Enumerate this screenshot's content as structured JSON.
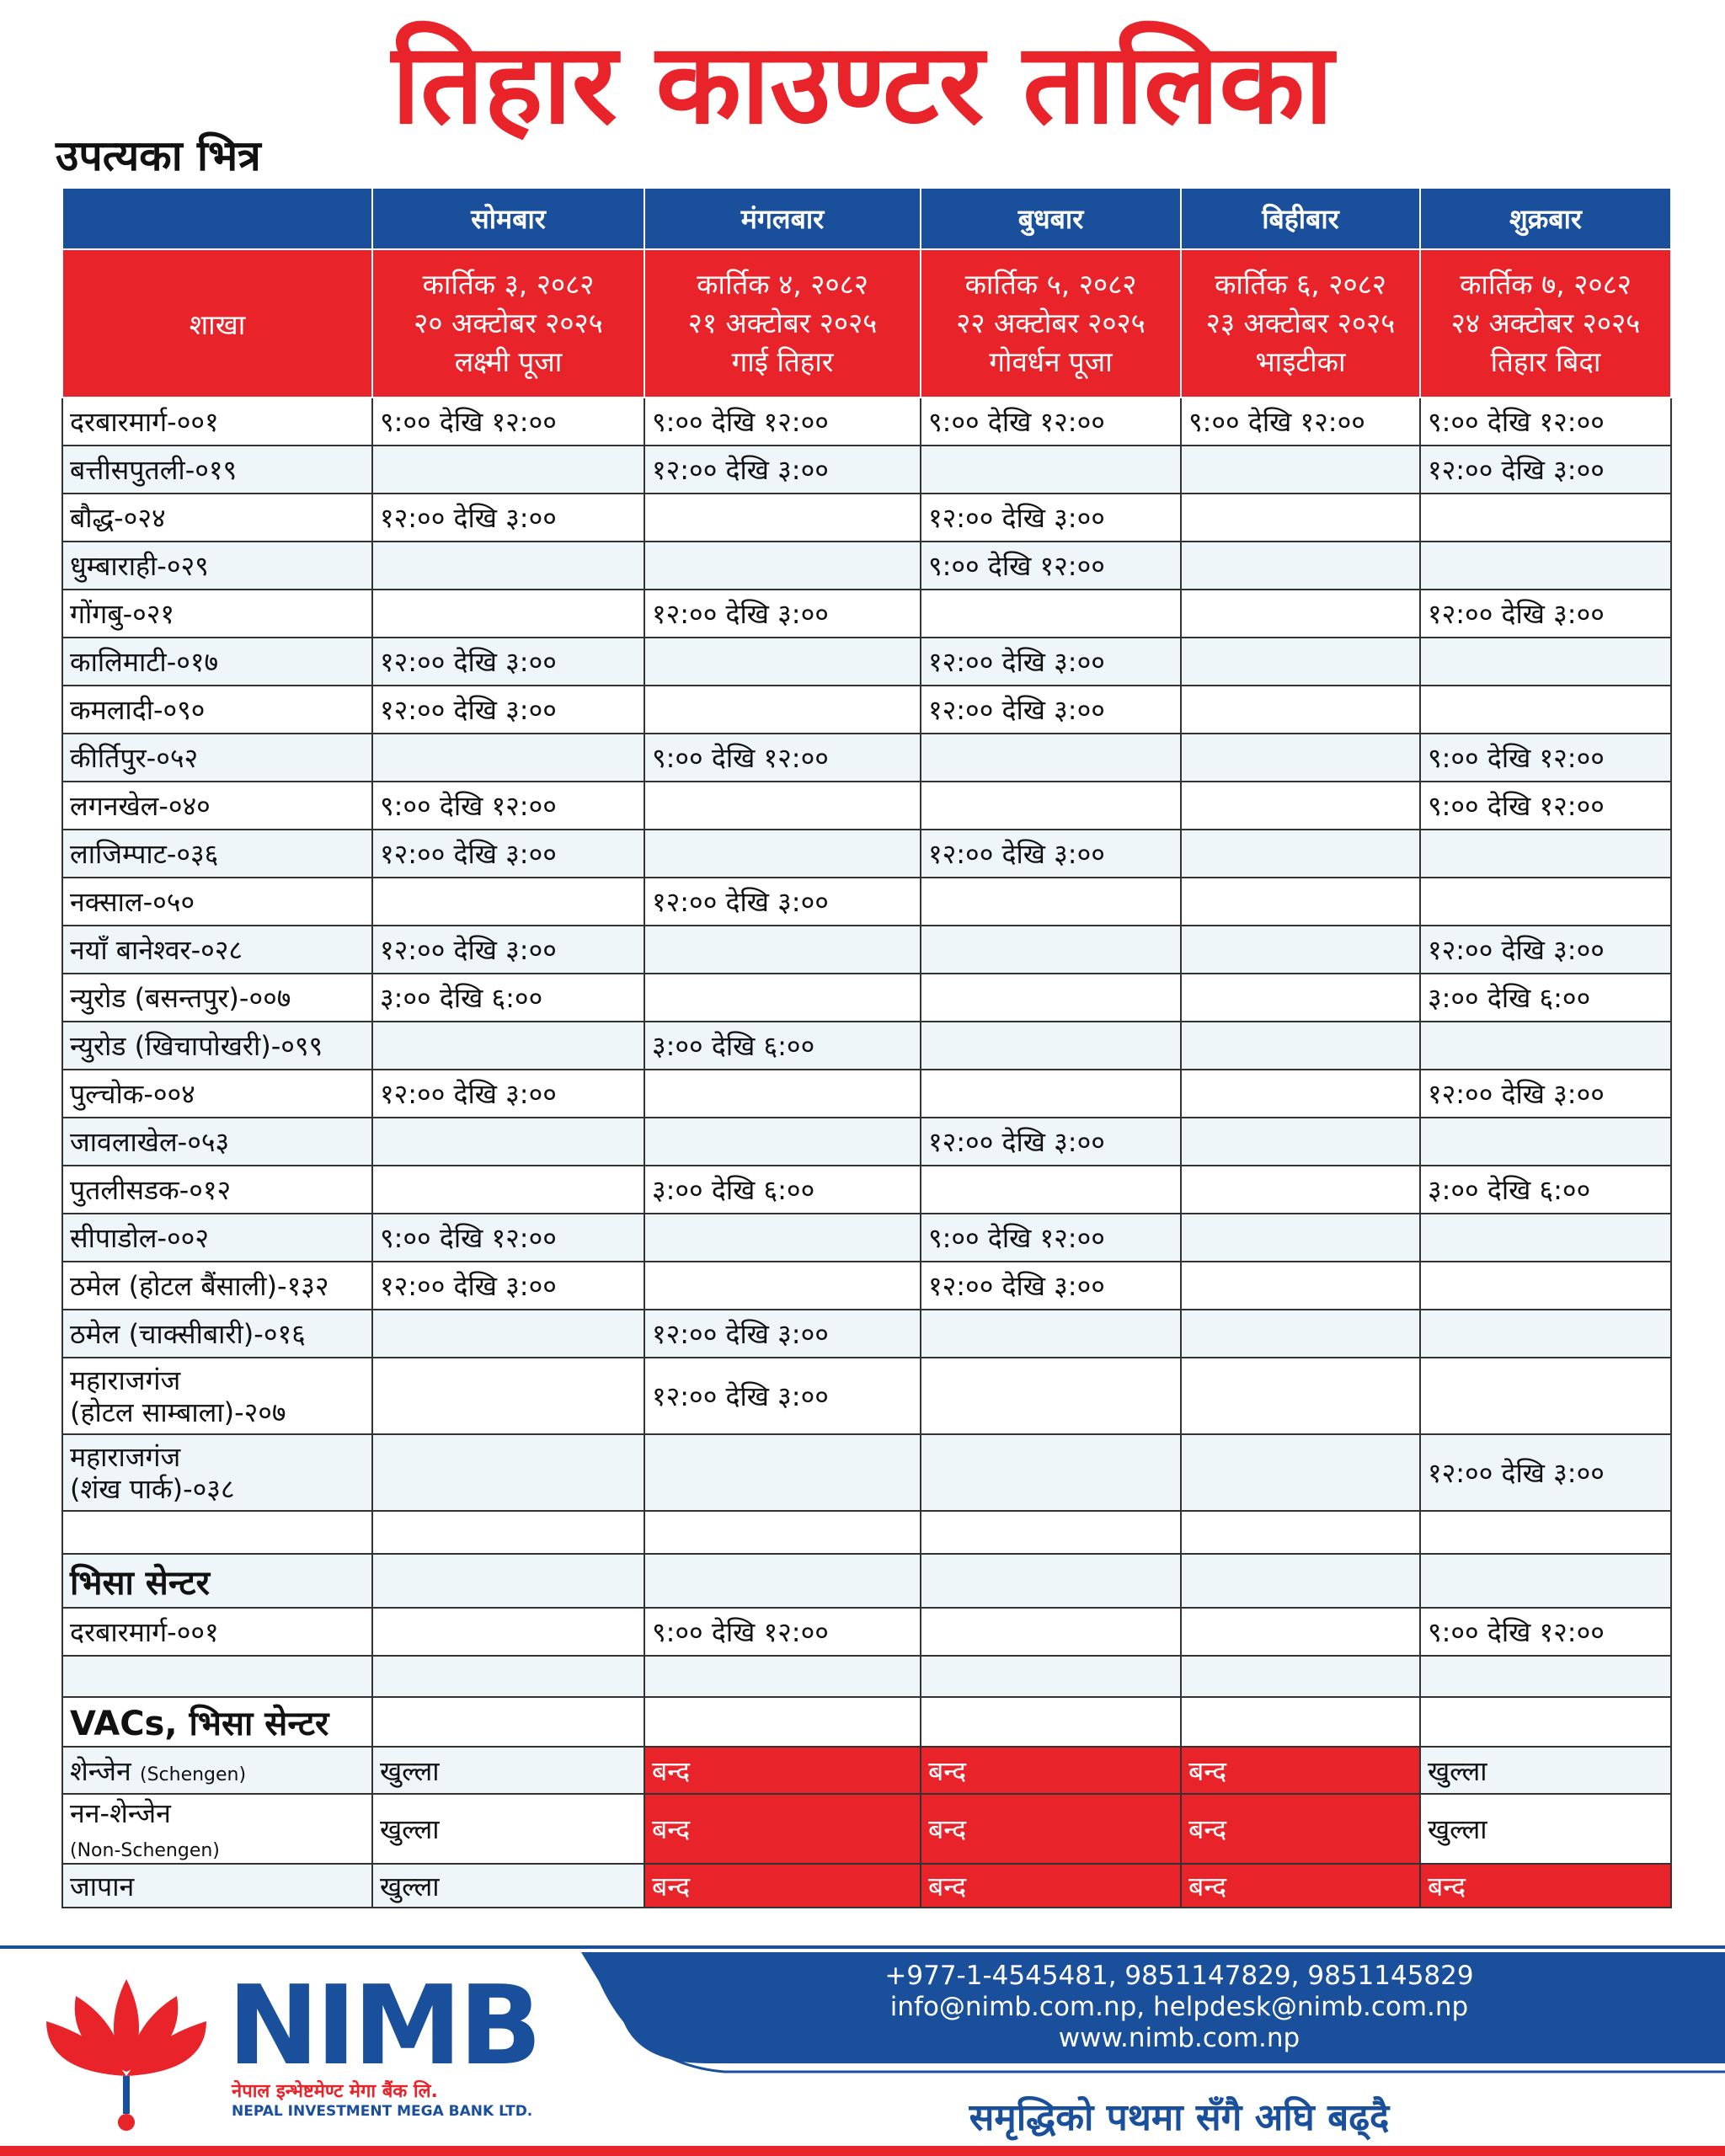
{
  "title": "तिहार काउण्टर तालिका",
  "subtitle": "उपत्यका भित्र",
  "table": {
    "branch_header": "शाखा",
    "days": [
      "सोमबार",
      "मंगलबार",
      "बुधबार",
      "बिहीबार",
      "शुक्रबार"
    ],
    "dates": [
      [
        "कार्तिक ३, २०८२",
        "२० अक्टोबर २०२५",
        "लक्ष्मी पूजा"
      ],
      [
        "कार्तिक ४, २०८२",
        "२१ अक्टोबर २०२५",
        "गाई तिहार"
      ],
      [
        "कार्तिक ५, २०८२",
        "२२ अक्टोबर २०२५",
        "गोवर्धन पूजा"
      ],
      [
        "कार्तिक ६, २०८२",
        "२३ अक्टोबर २०२५",
        "भाइटीका"
      ],
      [
        "कार्तिक  ७, २०८२",
        "२४ अक्टोबर २०२५",
        "तिहार बिदा"
      ]
    ],
    "rows": [
      {
        "branch": "दरबारमार्ग-००१",
        "cells": [
          "९:०० देखि १२:००",
          "९:०० देखि १२:००",
          "९:०० देखि १२:००",
          "९:०० देखि १२:००",
          "९:०० देखि १२:००"
        ]
      },
      {
        "branch": "बत्तीसपुतली-०१९",
        "cells": [
          null,
          "१२:०० देखि ३:००",
          null,
          null,
          "१२:०० देखि ३:००"
        ]
      },
      {
        "branch": "बौद्ध-०२४",
        "cells": [
          "१२:०० देखि ३:००",
          null,
          "१२:०० देखि ३:००",
          null,
          null
        ]
      },
      {
        "branch": "धुम्बाराही-०२९",
        "cells": [
          null,
          null,
          "९:०० देखि १२:००",
          null,
          null
        ]
      },
      {
        "branch": "गोंगबु-०२१",
        "cells": [
          null,
          "१२:०० देखि ३:००",
          null,
          null,
          "१२:०० देखि ३:००"
        ]
      },
      {
        "branch": "कालिमाटी-०१७",
        "cells": [
          "१२:०० देखि ३:००",
          null,
          "१२:०० देखि ३:००",
          null,
          null
        ]
      },
      {
        "branch": "कमलादी-०९०",
        "cells": [
          "१२:०० देखि ३:००",
          null,
          "१२:०० देखि ३:००",
          null,
          null
        ]
      },
      {
        "branch": "कीर्तिपुर-०५२",
        "cells": [
          null,
          "९:०० देखि १२:००",
          null,
          null,
          "९:०० देखि १२:००"
        ]
      },
      {
        "branch": "लगनखेल-०४०",
        "cells": [
          "९:०० देखि १२:००",
          null,
          null,
          null,
          "९:०० देखि १२:००"
        ]
      },
      {
        "branch": "लाजिम्पाट-०३६",
        "cells": [
          "१२:०० देखि ३:००",
          null,
          "१२:०० देखि ३:००",
          null,
          null
        ]
      },
      {
        "branch": "नक्साल-०५०",
        "cells": [
          null,
          "१२:०० देखि ३:००",
          null,
          null,
          null
        ]
      },
      {
        "branch": "नयाँ बानेश्वर-०२८",
        "cells": [
          "१२:०० देखि ३:००",
          null,
          null,
          null,
          "१२:०० देखि ३:००"
        ]
      },
      {
        "branch": "न्युरोड (बसन्तपुर)-००७",
        "cells": [
          "३:०० देखि ६:००",
          null,
          null,
          null,
          "३:०० देखि ६:००"
        ]
      },
      {
        "branch": "न्युरोड (खिचापोखरी)-०९९",
        "cells": [
          null,
          "३:०० देखि ६:००",
          null,
          null,
          null
        ]
      },
      {
        "branch": "पुल्चोक-००४",
        "cells": [
          "१२:०० देखि ३:००",
          null,
          null,
          null,
          "१२:०० देखि ३:००"
        ]
      },
      {
        "branch": "जावलाखेल-०५३",
        "cells": [
          null,
          null,
          "१२:०० देखि ३:००",
          null,
          null
        ]
      },
      {
        "branch": "पुतलीसडक-०१२",
        "cells": [
          null,
          "३:०० देखि ६:००",
          null,
          null,
          "३:०० देखि ६:००"
        ]
      },
      {
        "branch": "सीपाडोल-००२",
        "cells": [
          "९:०० देखि १२:००",
          null,
          "९:०० देखि १२:००",
          null,
          null
        ]
      },
      {
        "branch": "ठमेल (होटल बैंसाली)-१३२",
        "cells": [
          "१२:०० देखि ३:००",
          null,
          "१२:०० देखि ३:००",
          null,
          null
        ]
      },
      {
        "branch": "ठमेल (चाक्सीबारी)-०१६",
        "cells": [
          null,
          "१२:०० देखि ३:००",
          null,
          null,
          null
        ]
      },
      {
        "branch": "महाराजगंज\n(होटल साम्बाला)-२०७",
        "cells": [
          null,
          "१२:०० देखि ३:००",
          null,
          null,
          null
        ]
      },
      {
        "branch": "महाराजगंज\n(शंख पार्क)-०३८",
        "cells": [
          null,
          null,
          null,
          null,
          "१२:०० देखि ३:००"
        ]
      }
    ],
    "visa_heading": "भिसा सेन्टर",
    "visa_rows": [
      {
        "branch": "दरबारमार्ग-००१",
        "cells": [
          null,
          "९:०० देखि १२:००",
          null,
          null,
          "९:०० देखि १२:००"
        ]
      }
    ],
    "vac_heading": "VACs, भिसा सेन्टर",
    "closed_color": "#e8232a",
    "vac_rows": [
      {
        "name": "शेन्जेन",
        "note": "(Schengen)",
        "cells": [
          {
            "text": "खुल्ला",
            "closed": false
          },
          {
            "text": "बन्द",
            "closed": true
          },
          {
            "text": "बन्द",
            "closed": true
          },
          {
            "text": "बन्द",
            "closed": true
          },
          {
            "text": "खुल्ला",
            "closed": false
          }
        ]
      },
      {
        "name": "नन-शेन्जेन",
        "note": "(Non-Schengen)",
        "cells": [
          {
            "text": "खुल्ला",
            "closed": false
          },
          {
            "text": "बन्द",
            "closed": true
          },
          {
            "text": "बन्द",
            "closed": true
          },
          {
            "text": "बन्द",
            "closed": true
          },
          {
            "text": "खुल्ला",
            "closed": false
          }
        ]
      },
      {
        "name": "जापान",
        "cells": [
          {
            "text": "खुल्ला",
            "closed": false
          },
          {
            "text": "बन्द",
            "closed": true
          },
          {
            "text": "बन्द",
            "closed": true
          },
          {
            "text": "बन्द",
            "closed": true
          },
          {
            "text": "बन्द",
            "closed": true
          }
        ]
      }
    ]
  },
  "footer": {
    "logo": "NIMB",
    "bank_name_np": "नेपाल इन्भेष्टमेण्ट मेगा बैंक लि.",
    "bank_name_en": "NEPAL INVESTMENT MEGA BANK LTD.",
    "phone": "+977-1-4545481, 9851147829, 9851145829",
    "email": "info@nimb.com.np, helpdesk@nimb.com.np",
    "website": "www.nimb.com.np",
    "slogan": "समृद्धिको पथमा सँगै अघि बढ्दै"
  }
}
